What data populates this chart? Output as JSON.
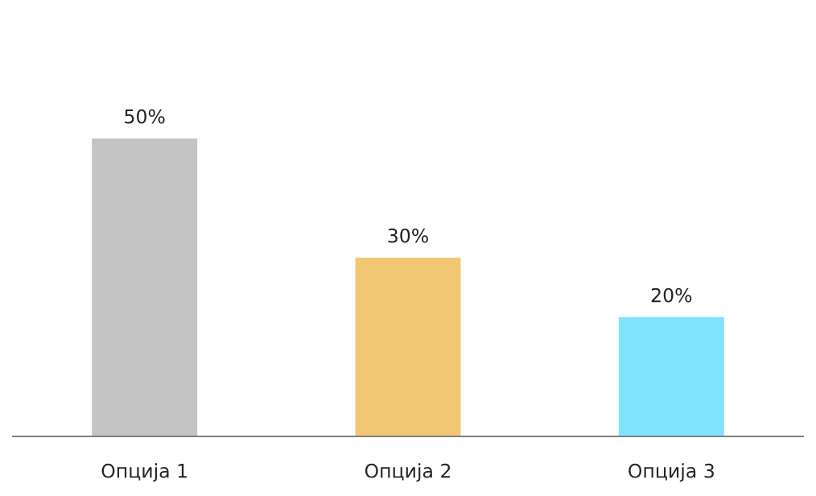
{
  "chart_data": {
    "type": "bar",
    "categories": [
      "Опција 1",
      "Опција 2",
      "Опција 3"
    ],
    "values": [
      50,
      30,
      20
    ],
    "colors": [
      "#c4c4c4",
      "#f2c774",
      "#7fe4fc"
    ],
    "value_labels": [
      "50%",
      "30%",
      "20%"
    ],
    "grid": false,
    "legend": false
  }
}
